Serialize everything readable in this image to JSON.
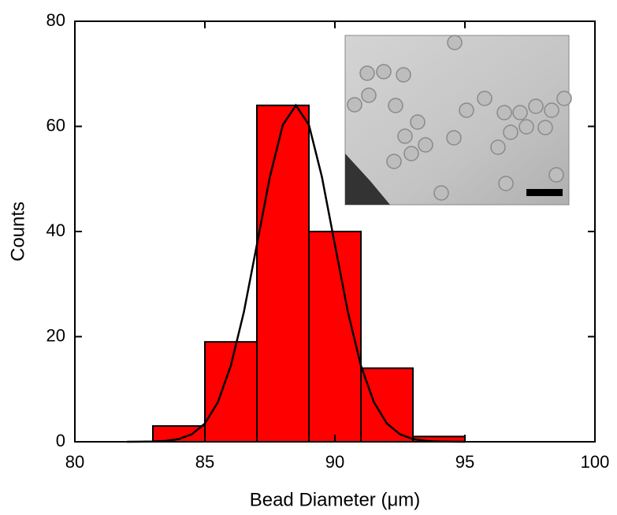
{
  "chart_data": {
    "type": "histogram",
    "xlabel": "Bead Diameter (μm)",
    "ylabel": "Counts",
    "bins": [
      83,
      85,
      87,
      89,
      91,
      93,
      95
    ],
    "counts": [
      3,
      19,
      64,
      40,
      14,
      1
    ],
    "color": "#ff0000",
    "fit": {
      "color": "#000000",
      "x": [
        82,
        82.5,
        83,
        83.5,
        84,
        84.5,
        85,
        85.5,
        86,
        86.5,
        87,
        87.5,
        88,
        88.5,
        89,
        89.5,
        90,
        90.5,
        91,
        91.5,
        92,
        92.5,
        93,
        93.5,
        94,
        94.5,
        95
      ],
      "values": [
        0,
        0.01,
        0.05,
        0.17,
        0.52,
        1.43,
        3.47,
        7.53,
        14.5,
        24.7,
        37.5,
        50.4,
        60.3,
        64,
        60.3,
        50.4,
        37.5,
        24.7,
        14.5,
        7.53,
        3.47,
        1.43,
        0.52,
        0.17,
        0.05,
        0.01,
        0
      ]
    },
    "xlim": [
      80,
      100
    ],
    "xticks": [
      80,
      85,
      90,
      95,
      100
    ],
    "ylim": [
      0,
      80
    ],
    "yticks": [
      0,
      20,
      40,
      60,
      80
    ]
  }
}
